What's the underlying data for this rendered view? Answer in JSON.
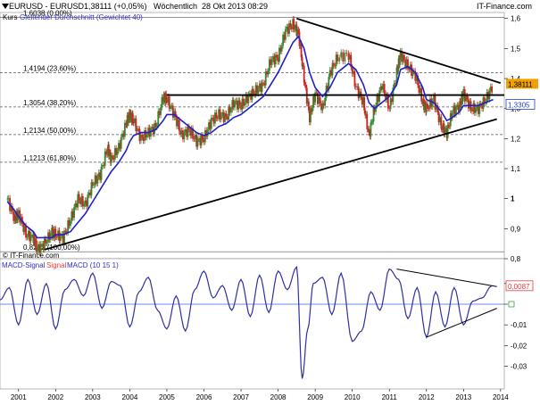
{
  "header": {
    "instrument": "EURUSD - EURUSD",
    "quote": "1,38111 (+0,05%)",
    "period": "Wöchentlich",
    "datetime": "28 Okt 2013 08:29",
    "source": "IT-Finance.com",
    "legend_kurs": "Kurs",
    "legend_ma": "Gleitender Durchschnitt (Gewichtet 40)",
    "copyright": "© IT-Finance.com"
  },
  "colors": {
    "price_up": "#2e8b2e",
    "price_down": "#d42020",
    "moving_average": "#2020c8",
    "macd": "#3030a0",
    "signal": "#e04040",
    "grid_dashed": "#555555",
    "trendline": "#000000",
    "last_price_label": "#f0a000",
    "ma_label": "#2040d0",
    "macd_zero": "#4060e0"
  },
  "chart_data": [
    {
      "type": "line",
      "title": "EURUSD - EURUSD",
      "series": [
        {
          "name": "Kurs",
          "style": "candlestick-weekly"
        },
        {
          "name": "Gleitender Durchschnitt (Gewichtet 40)",
          "color": "#2020c8"
        }
      ],
      "x": [
        2000.7,
        2000.9,
        2001.0,
        2001.2,
        2001.4,
        2001.5,
        2001.7,
        2001.9,
        2002.0,
        2002.2,
        2002.4,
        2002.6,
        2002.8,
        2003.0,
        2003.2,
        2003.4,
        2003.5,
        2003.7,
        2003.9,
        2004.0,
        2004.1,
        2004.3,
        2004.5,
        2004.7,
        2004.9,
        2005.0,
        2005.2,
        2005.4,
        2005.6,
        2005.8,
        2006.0,
        2006.2,
        2006.4,
        2006.6,
        2006.8,
        2007.0,
        2007.2,
        2007.4,
        2007.6,
        2007.8,
        2008.0,
        2008.2,
        2008.4,
        2008.55,
        2008.7,
        2008.85,
        2009.0,
        2009.2,
        2009.4,
        2009.6,
        2009.9,
        2010.1,
        2010.3,
        2010.45,
        2010.6,
        2010.8,
        2011.0,
        2011.2,
        2011.3,
        2011.5,
        2011.7,
        2011.9,
        2012.0,
        2012.2,
        2012.4,
        2012.55,
        2012.7,
        2012.9,
        2013.0,
        2013.2,
        2013.4,
        2013.6,
        2013.8
      ],
      "close": [
        1.0,
        0.93,
        0.95,
        0.88,
        0.87,
        0.83,
        0.85,
        0.89,
        0.88,
        0.87,
        0.93,
        1.0,
        0.98,
        1.05,
        1.08,
        1.17,
        1.13,
        1.17,
        1.25,
        1.28,
        1.26,
        1.2,
        1.22,
        1.24,
        1.34,
        1.33,
        1.28,
        1.21,
        1.23,
        1.19,
        1.2,
        1.26,
        1.28,
        1.27,
        1.32,
        1.31,
        1.34,
        1.36,
        1.38,
        1.46,
        1.47,
        1.56,
        1.58,
        1.55,
        1.4,
        1.27,
        1.35,
        1.3,
        1.42,
        1.47,
        1.48,
        1.37,
        1.32,
        1.21,
        1.3,
        1.38,
        1.3,
        1.42,
        1.48,
        1.44,
        1.41,
        1.32,
        1.3,
        1.33,
        1.24,
        1.22,
        1.29,
        1.31,
        1.35,
        1.3,
        1.3,
        1.33,
        1.38
      ],
      "ma": [
        0.99,
        0.96,
        0.94,
        0.91,
        0.89,
        0.87,
        0.87,
        0.87,
        0.88,
        0.88,
        0.89,
        0.92,
        0.95,
        0.99,
        1.03,
        1.07,
        1.09,
        1.12,
        1.16,
        1.19,
        1.21,
        1.22,
        1.22,
        1.23,
        1.26,
        1.28,
        1.28,
        1.26,
        1.24,
        1.22,
        1.21,
        1.22,
        1.24,
        1.25,
        1.27,
        1.28,
        1.3,
        1.32,
        1.34,
        1.38,
        1.42,
        1.47,
        1.52,
        1.54,
        1.5,
        1.42,
        1.37,
        1.34,
        1.37,
        1.42,
        1.45,
        1.43,
        1.38,
        1.32,
        1.3,
        1.32,
        1.34,
        1.38,
        1.43,
        1.44,
        1.42,
        1.37,
        1.33,
        1.32,
        1.29,
        1.26,
        1.27,
        1.29,
        1.31,
        1.31,
        1.31,
        1.32,
        1.33
      ],
      "ylim": [
        0.8,
        1.62
      ],
      "xlim": [
        2000.5,
        2014.1
      ],
      "yticks": [
        "1,6",
        "1,5",
        "1,4",
        "1,3",
        "1,2",
        "1,1",
        "1",
        "0,9",
        "0,8"
      ],
      "ytick_values": [
        1.6,
        1.5,
        1.4,
        1.3,
        1.2,
        1.1,
        1.0,
        0.9,
        0.8
      ],
      "fibonacci": [
        {
          "label": "1,6038 (0,00%)",
          "value": 1.6038
        },
        {
          "label": "1,4194 (23,60%)",
          "value": 1.4194
        },
        {
          "label": "1,3054 (38,20%)",
          "value": 1.3054
        },
        {
          "label": "1,2134 (50,00%)",
          "value": 1.2134
        },
        {
          "label": "1,1213 (61,80%)",
          "value": 1.1213
        },
        {
          "label": "0,8232 (100,00%)",
          "value": 0.8232
        }
      ],
      "trendlines": [
        {
          "x": [
            2008.5,
            2014.0
          ],
          "y": [
            1.6,
            1.385
          ]
        },
        {
          "x": [
            2001.7,
            2013.9
          ],
          "y": [
            0.83,
            1.265
          ]
        },
        {
          "x": [
            2005.0,
            2014.1
          ],
          "y": [
            1.345,
            1.345
          ]
        }
      ],
      "last_price_label": "1,38111",
      "last_price": 1.38111,
      "ma_label": "1,3305",
      "ma_last": 1.3305,
      "grid": false
    },
    {
      "type": "line",
      "title": "MACD-Signal Signal MACD (10 15 1)",
      "legend": [
        "MACD-Signal",
        "Signal",
        "MACD (10 15 1)"
      ],
      "x": [
        2000.5,
        2000.75,
        2001.0,
        2001.25,
        2001.5,
        2001.75,
        2002.0,
        2002.25,
        2002.5,
        2002.75,
        2003.0,
        2003.25,
        2003.5,
        2003.75,
        2004.0,
        2004.25,
        2004.5,
        2004.75,
        2005.0,
        2005.25,
        2005.5,
        2005.75,
        2006.0,
        2006.25,
        2006.5,
        2006.75,
        2007.0,
        2007.25,
        2007.5,
        2007.75,
        2008.0,
        2008.25,
        2008.5,
        2008.65,
        2008.8,
        2008.95,
        2009.2,
        2009.45,
        2009.7,
        2010.0,
        2010.25,
        2010.5,
        2010.75,
        2011.0,
        2011.25,
        2011.5,
        2011.75,
        2012.0,
        2012.25,
        2012.5,
        2012.75,
        2013.0,
        2013.25,
        2013.5,
        2013.75
      ],
      "macd": [
        0.002,
        0.008,
        -0.01,
        0.012,
        -0.005,
        0.01,
        -0.012,
        0.007,
        0.012,
        0.004,
        0.015,
        -0.002,
        0.011,
        0.009,
        -0.011,
        0.006,
        0.013,
        -0.003,
        -0.012,
        0.004,
        -0.013,
        0.007,
        0.016,
        0.003,
        0.009,
        -0.003,
        0.012,
        -0.006,
        0.014,
        -0.004,
        0.016,
        0.007,
        0.018,
        -0.036,
        -0.012,
        0.01,
        0.013,
        -0.005,
        0.015,
        -0.018,
        -0.013,
        0.006,
        -0.003,
        0.017,
        0.012,
        -0.007,
        0.008,
        -0.016,
        0.006,
        -0.011,
        0.008,
        -0.01,
        0.0015,
        0.003,
        0.0087
      ],
      "ylim": [
        -0.041,
        0.022
      ],
      "yticks": [
        "0,01",
        "0",
        "-0,01",
        "-0,02",
        "-0,03"
      ],
      "ytick_values": [
        0.01,
        0.0,
        -0.01,
        -0.02,
        -0.03
      ],
      "trendlines": [
        {
          "x": [
            2011.2,
            2013.9
          ],
          "y": [
            0.017,
            0.0085
          ]
        },
        {
          "x": [
            2012.0,
            2013.9
          ],
          "y": [
            -0.016,
            -0.002
          ]
        }
      ],
      "last_value_label": "0,0087",
      "last_value": 0.0087,
      "grid": false
    }
  ],
  "x_axis": {
    "labels": [
      "2001",
      "2002",
      "2003",
      "2004",
      "2005",
      "2006",
      "2007",
      "2008",
      "2009",
      "2010",
      "2011",
      "2012",
      "2013",
      "2014"
    ],
    "values": [
      2001,
      2002,
      2003,
      2004,
      2005,
      2006,
      2007,
      2008,
      2009,
      2010,
      2011,
      2012,
      2013,
      2014
    ]
  }
}
